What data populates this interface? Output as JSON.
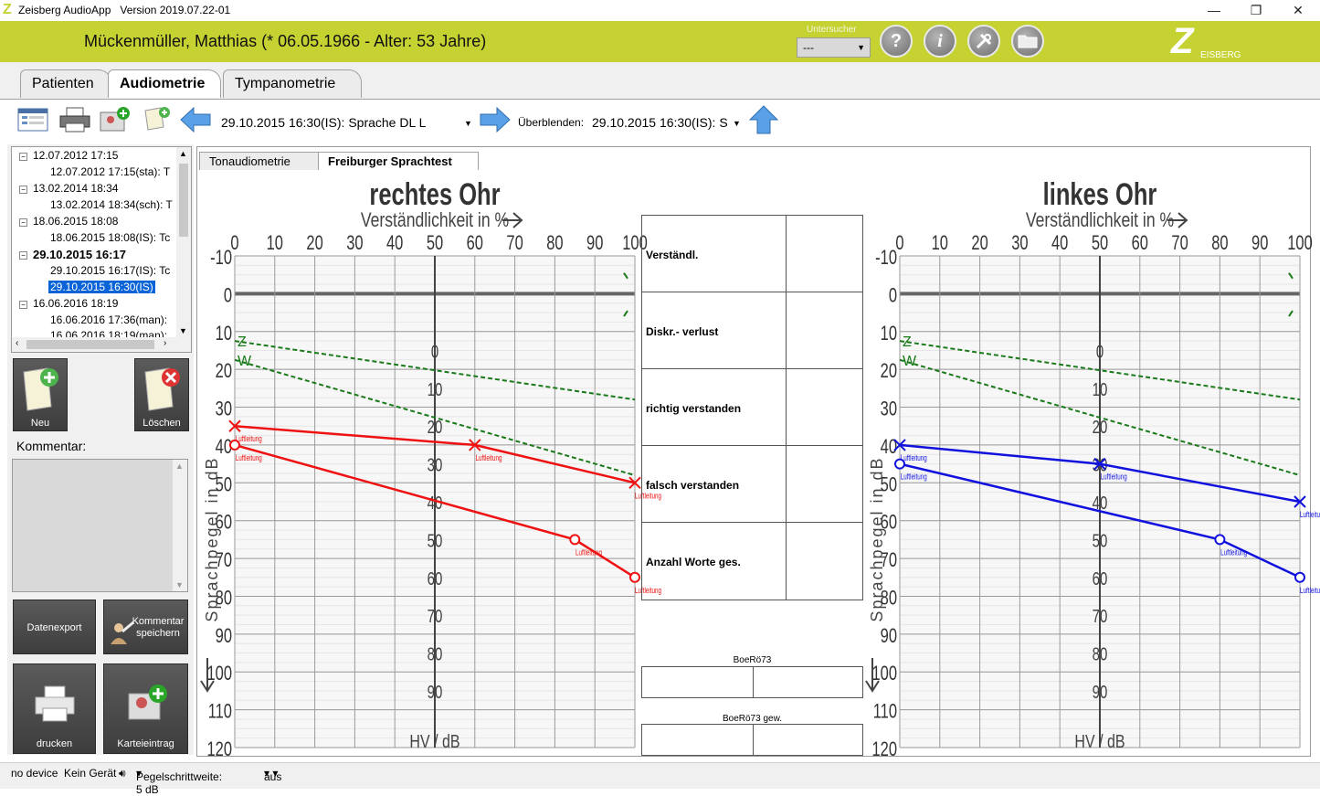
{
  "window": {
    "app_name": "Zeisberg AudioApp",
    "version": "Version 2019.07.22-01",
    "minimize": "—",
    "maximize": "❐",
    "close": "✕"
  },
  "header": {
    "patient": "Mückenmüller, Matthias (* 06.05.1966 - Alter: 53 Jahre)",
    "untersucher_label": "Untersucher",
    "untersucher_value": "---",
    "brand_letter": "Z",
    "brand_text": "EISBERG",
    "help_icon": "?",
    "info_icon": "i"
  },
  "tabs": [
    {
      "label": "Patienten"
    },
    {
      "label": "Audiometrie"
    },
    {
      "label": "Tympanometrie"
    }
  ],
  "toolbar": {
    "session_current": "29.10.2015 16:30(IS): Sprache DL L",
    "overlay_label": "Überblenden:",
    "overlay_value": "29.10.2015 16:30(IS): S"
  },
  "tree": {
    "items": [
      {
        "label": "12.07.2012 17:15"
      },
      {
        "label": "12.07.2012 17:15(sta): T"
      },
      {
        "label": "13.02.2014 18:34"
      },
      {
        "label": "13.02.2014 18:34(sch): T"
      },
      {
        "label": "18.06.2015 18:08"
      },
      {
        "label": "18.06.2015 18:08(IS): Tc"
      },
      {
        "label": "29.10.2015 16:17"
      },
      {
        "label": "29.10.2015 16:17(IS): Tc"
      },
      {
        "label": "29.10.2015 16:30(IS)"
      },
      {
        "label": "16.06.2016 18:19"
      },
      {
        "label": "16.06.2016 17:36(man):"
      },
      {
        "label": "16.06.2016 18:19(man):"
      }
    ]
  },
  "sidebar": {
    "new_label": "Neu",
    "delete_label": "Löschen",
    "comment_label": "Kommentar:",
    "export_label": "Datenexport",
    "save_comment_label": "Kommentar speichern",
    "print_label": "drucken",
    "card_entry_label": "Karteieintrag"
  },
  "subtabs": [
    {
      "label": "Tonaudiometrie"
    },
    {
      "label": "Freiburger Sprachtest"
    }
  ],
  "chart_data": [
    {
      "type": "line",
      "title": "rechtes Ohr",
      "xlabel": "Verständlichkeit in %",
      "ylabel": "Sprachpegel in dB",
      "x_ticks": [
        "0",
        "10",
        "20",
        "30",
        "40",
        "50",
        "60",
        "70",
        "80",
        "90",
        "100"
      ],
      "y_ticks": [
        "-10",
        "0",
        "10",
        "20",
        "30",
        "40",
        "50",
        "60",
        "70",
        "80",
        "90",
        "100",
        "110",
        "120"
      ],
      "hv_ticks": [
        "0",
        "10",
        "20",
        "30",
        "40",
        "50",
        "60",
        "70",
        "80",
        "90"
      ],
      "hv_label": "HV / dB",
      "norm_labels": [
        "Z",
        "W"
      ],
      "series": [
        {
          "name": "Luftleitung",
          "marker": "x",
          "color": "#ee1111",
          "x": [
            0,
            60,
            100
          ],
          "y": [
            35,
            40,
            50
          ]
        },
        {
          "name": "Luftleitung",
          "marker": "o",
          "color": "#ee1111",
          "x": [
            0,
            85,
            100
          ],
          "y": [
            40,
            65,
            75
          ]
        }
      ],
      "norm_lines": [
        {
          "color": "#1a7a1a",
          "x": [
            0,
            100
          ],
          "y": [
            12.5,
            28
          ]
        },
        {
          "color": "#1a7a1a",
          "x": [
            0,
            100
          ],
          "y": [
            17.5,
            48
          ]
        }
      ]
    },
    {
      "type": "line",
      "title": "linkes Ohr",
      "xlabel": "Verständlichkeit in %",
      "ylabel": "Sprachpegel in dB",
      "x_ticks": [
        "0",
        "10",
        "20",
        "30",
        "40",
        "50",
        "60",
        "70",
        "80",
        "90",
        "100"
      ],
      "y_ticks": [
        "-10",
        "0",
        "10",
        "20",
        "30",
        "40",
        "50",
        "60",
        "70",
        "80",
        "90",
        "100",
        "110",
        "120"
      ],
      "hv_ticks": [
        "0",
        "10",
        "20",
        "30",
        "40",
        "50",
        "60",
        "70",
        "80",
        "90"
      ],
      "hv_label": "HV / dB",
      "norm_labels": [
        "Z",
        "W"
      ],
      "series": [
        {
          "name": "Luftleitung",
          "marker": "x",
          "color": "#1111dd",
          "x": [
            0,
            50,
            100
          ],
          "y": [
            40,
            45,
            55
          ]
        },
        {
          "name": "Luftleitung",
          "marker": "o",
          "color": "#1111dd",
          "x": [
            0,
            80,
            100
          ],
          "y": [
            45,
            65,
            75
          ]
        }
      ],
      "norm_lines": [
        {
          "color": "#1a7a1a",
          "x": [
            0,
            100
          ],
          "y": [
            12.5,
            28
          ]
        },
        {
          "color": "#1a7a1a",
          "x": [
            0,
            100
          ],
          "y": [
            17.5,
            48
          ]
        }
      ]
    }
  ],
  "midtable": {
    "rows": [
      {
        "label": "Verständl."
      },
      {
        "label": "Diskr.- verlust"
      },
      {
        "label": "richtig verstanden"
      },
      {
        "label": "falsch verstanden"
      },
      {
        "label": "Anzahl Worte ges."
      }
    ],
    "boero_label": "BoeRö73",
    "boero_gew_label": "BoeRö73 gew."
  },
  "status": {
    "device": "no device",
    "geraet": "Kein Gerät",
    "step": "Pegelschrittweite: 5 dB",
    "mode": "aus"
  }
}
